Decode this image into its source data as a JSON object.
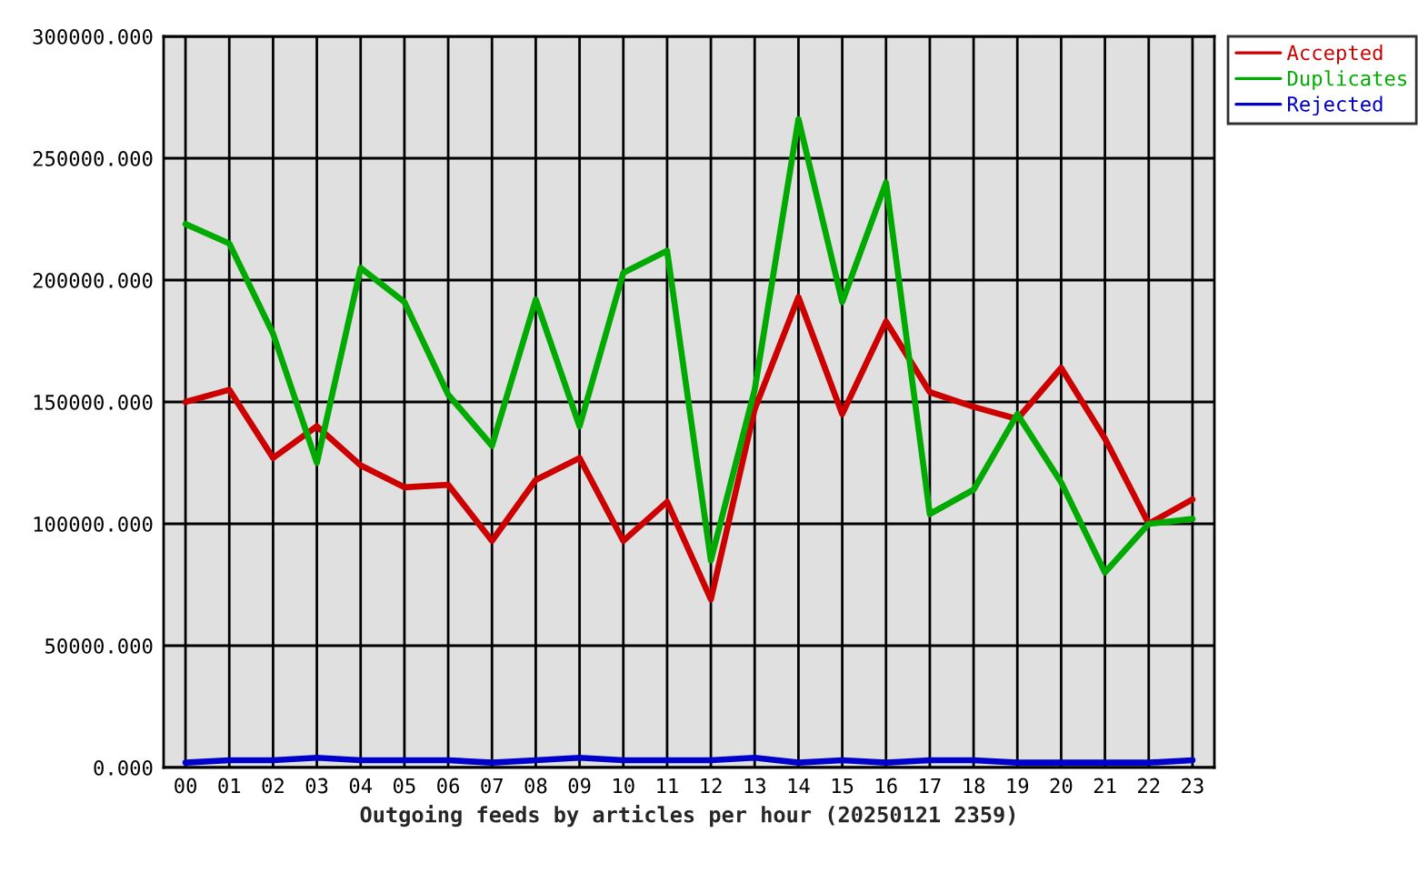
{
  "chart_data": {
    "type": "line",
    "xlabel": "Outgoing feeds by articles per hour (20250121 2359)",
    "categories": [
      "00",
      "01",
      "02",
      "03",
      "04",
      "05",
      "06",
      "07",
      "08",
      "09",
      "10",
      "11",
      "12",
      "13",
      "14",
      "15",
      "16",
      "17",
      "18",
      "19",
      "20",
      "21",
      "22",
      "23"
    ],
    "series": [
      {
        "name": "Accepted",
        "color": "#cc0000",
        "values": [
          150000,
          155000,
          127000,
          140000,
          124000,
          115000,
          116000,
          93000,
          118000,
          127000,
          93000,
          109000,
          69000,
          147000,
          193000,
          145000,
          183000,
          154000,
          148000,
          143000,
          164000,
          135000,
          100000,
          110000
        ]
      },
      {
        "name": "Duplicates",
        "color": "#00aa00",
        "values": [
          223000,
          215000,
          178000,
          125000,
          205000,
          191000,
          153000,
          132000,
          192000,
          140000,
          203000,
          212000,
          85000,
          155000,
          266000,
          191000,
          240000,
          104000,
          114000,
          145000,
          117000,
          80000,
          100000,
          102000
        ]
      },
      {
        "name": "Rejected",
        "color": "#0000cc",
        "values": [
          2000,
          3000,
          3000,
          4000,
          3000,
          3000,
          3000,
          2000,
          3000,
          4000,
          3000,
          3000,
          3000,
          4000,
          2000,
          3000,
          2000,
          3000,
          3000,
          2000,
          2000,
          2000,
          2000,
          3000
        ]
      }
    ],
    "ylim": [
      0,
      300000
    ],
    "yticks": [
      {
        "value": 0,
        "label": "0.000"
      },
      {
        "value": 50000,
        "label": "50000.000"
      },
      {
        "value": 100000,
        "label": "100000.000"
      },
      {
        "value": 150000,
        "label": "150000.000"
      },
      {
        "value": 200000,
        "label": "200000.000"
      },
      {
        "value": 250000,
        "label": "250000.000"
      },
      {
        "value": 300000,
        "label": "300000.000"
      }
    ],
    "grid": true,
    "legend": "top right"
  }
}
